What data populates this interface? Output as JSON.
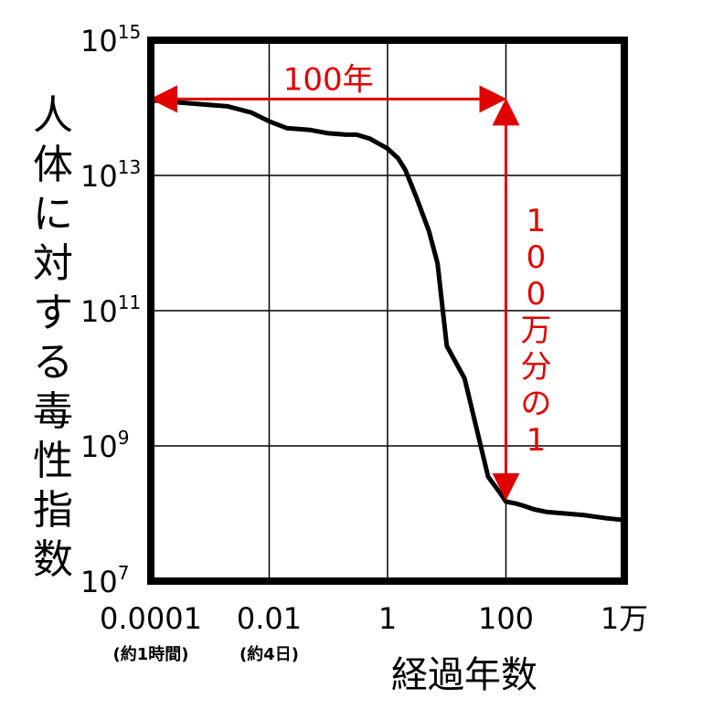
{
  "chart_data": {
    "type": "line",
    "ylabel": "人体に対する毒性指数",
    "xlabel": "経過年数",
    "x_scale": "log",
    "y_scale": "log",
    "xlim": [
      0.0001,
      10000
    ],
    "ylim": [
      10000000.0,
      1000000000000000.0
    ],
    "grid": true,
    "x_ticks": [
      {
        "value": 0.0001,
        "label": "0.0001",
        "sub": "(約1時間)"
      },
      {
        "value": 0.01,
        "label": "0.01",
        "sub": "(約4日)"
      },
      {
        "value": 1,
        "label": "1",
        "sub": ""
      },
      {
        "value": 100,
        "label": "100",
        "sub": ""
      },
      {
        "value": 10000,
        "label": "1万",
        "sub": ""
      }
    ],
    "y_ticks": [
      {
        "value": 10000000.0,
        "base": "10",
        "exp": "7"
      },
      {
        "value": 1000000000.0,
        "base": "10",
        "exp": "9"
      },
      {
        "value": 100000000000.0,
        "base": "10",
        "exp": "11"
      },
      {
        "value": 10000000000000.0,
        "base": "10",
        "exp": "13"
      },
      {
        "value": 1000000000000000.0,
        "base": "10",
        "exp": "15"
      }
    ],
    "series": [
      {
        "x": [
          0.0001,
          0.0003,
          0.001,
          0.002,
          0.005,
          0.01,
          0.02,
          0.05,
          0.1,
          0.2,
          0.3,
          0.5,
          1,
          1.5,
          2,
          3,
          5,
          7,
          10,
          20,
          50,
          80,
          100,
          150,
          200,
          300,
          500,
          1000,
          2000,
          5000,
          10000
        ],
        "y": [
          130000000000000.0,
          120000000000000.0,
          110000000000000.0,
          105000000000000.0,
          85000000000000.0,
          63000000000000.0,
          50000000000000.0,
          47000000000000.0,
          42000000000000.0,
          40000000000000.0,
          40000000000000.0,
          35000000000000.0,
          25000000000000.0,
          18000000000000.0,
          12000000000000.0,
          5000000000000.0,
          1500000000000.0,
          500000000000.0,
          30000000000.0,
          10000000000.0,
          350000000.0,
          200000000.0,
          150000000.0,
          140000000.0,
          130000000.0,
          115000000.0,
          105000000.0,
          100000000.0,
          95000000.0,
          85000000.0,
          80000000.0
        ],
        "color": "#000000"
      }
    ],
    "annotations": [
      {
        "text": "100年",
        "from_x": 0.0001,
        "to_x": 100,
        "at_y": 135000000000000.0,
        "color": "#e00000"
      },
      {
        "text": "100万分の1",
        "at_x": 100,
        "from_y": 135000000000000.0,
        "to_y": 160000000.0,
        "color": "#e00000"
      }
    ]
  }
}
